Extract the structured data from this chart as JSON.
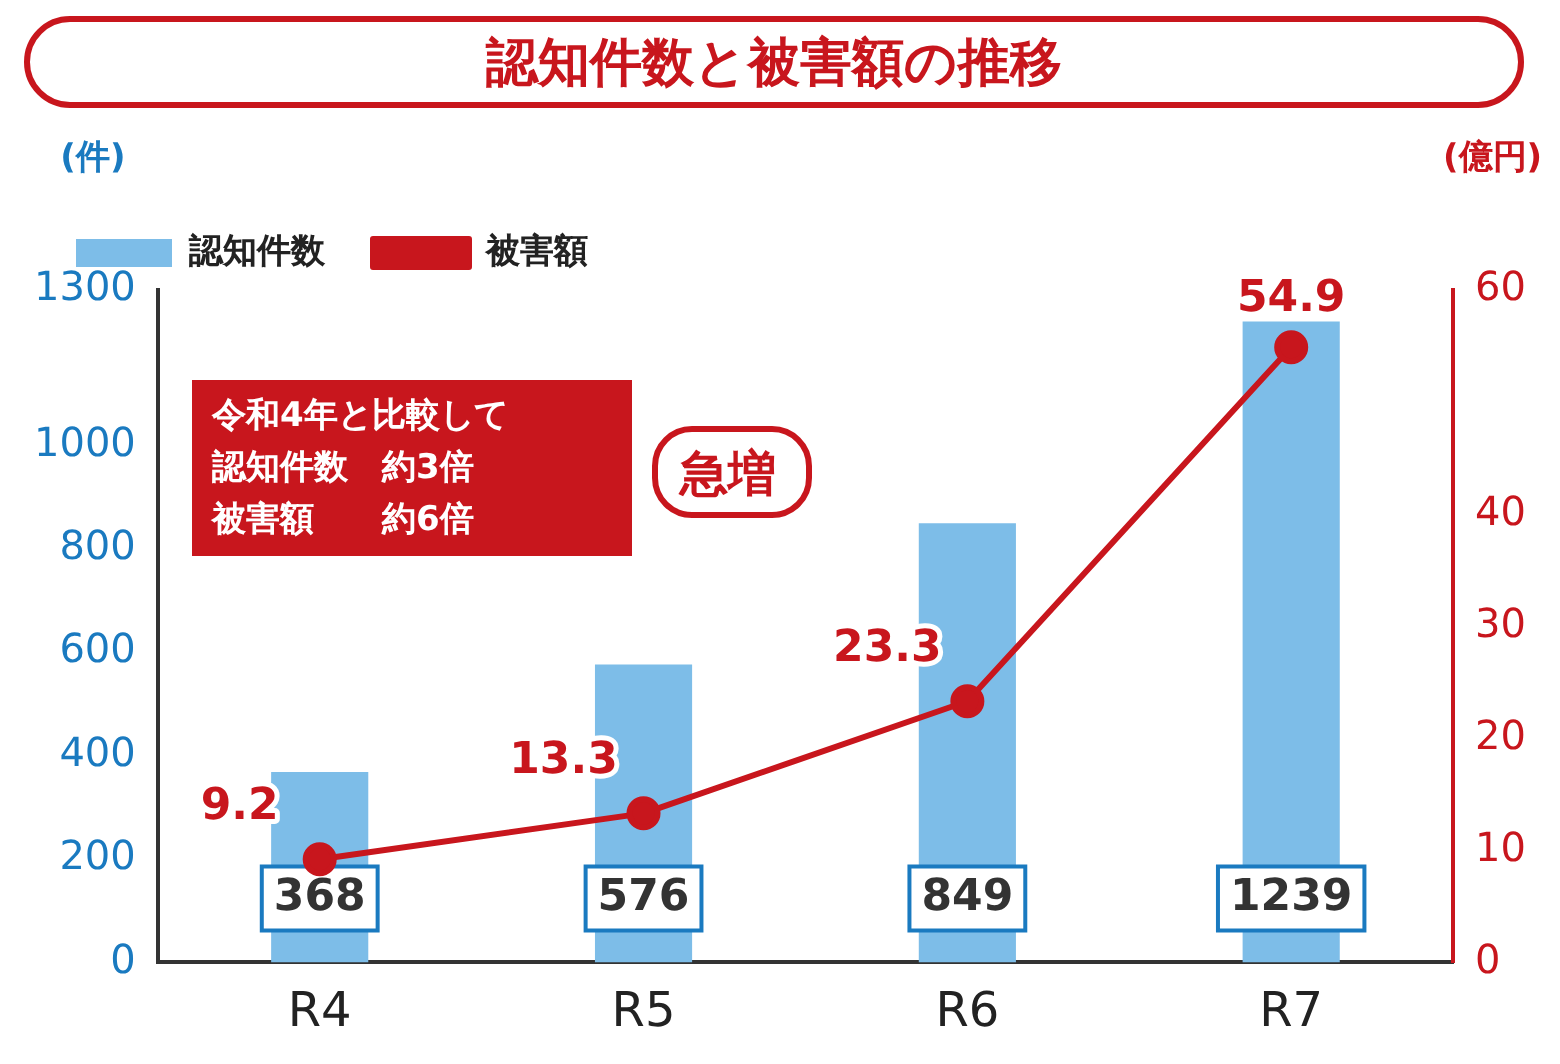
{
  "chart_data": {
    "type": "bar",
    "title": "認知件数と被害額の推移",
    "categories": [
      "R4",
      "R5",
      "R6",
      "R7"
    ],
    "series": [
      {
        "name": "認知件数",
        "color": "#7dbde8",
        "values": [
          368,
          576,
          849,
          1239
        ]
      },
      {
        "name": "被害額",
        "type": "line",
        "axis": "y2",
        "color": "#c8161d",
        "values": [
          9.2,
          13.3,
          23.3,
          54.9
        ]
      }
    ],
    "ylabel": "(件)",
    "y2label": "(億円)",
    "ylim": [
      0,
      1300
    ],
    "yticks": [
      0,
      200,
      400,
      600,
      800,
      1000,
      1300
    ],
    "y2lim": [
      0,
      60
    ],
    "y2ticks": [
      0,
      10,
      20,
      30,
      40,
      60
    ],
    "annotations": [
      "令和4年と比較して",
      "認知件数　約3倍",
      "被害額　　約6倍",
      "急増"
    ],
    "data_labels": true,
    "legend": "top left",
    "marker": "circle",
    "grid": false
  }
}
